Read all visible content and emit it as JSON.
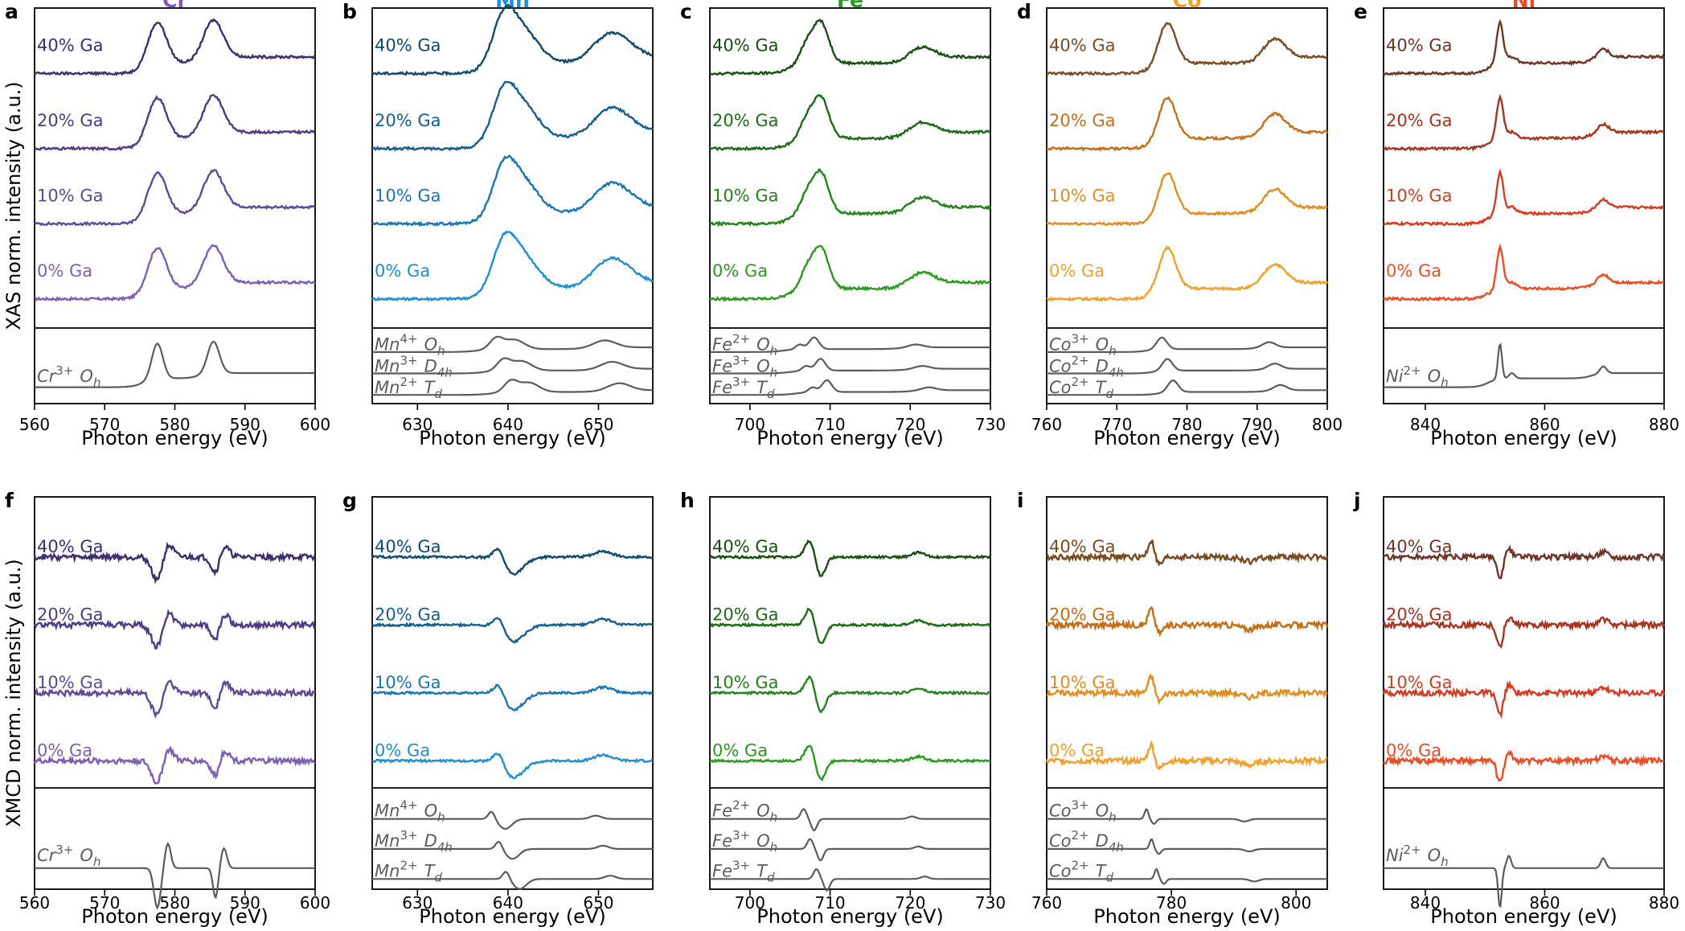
{
  "figure": {
    "row_ylabels": [
      "XAS norm. intensity (a.u.)",
      "XMCD norm. intensity (a.u.)"
    ],
    "xlabel": "Photon energy (eV)",
    "colors": {
      "Cr": [
        "#7b5fb4",
        "#5f4999",
        "#4e3b85",
        "#3e2e6e"
      ],
      "Mn": [
        "#1d8fd6",
        "#1876b3",
        "#145e90",
        "#104a6c"
      ],
      "Fe": [
        "#2a9a1e",
        "#23831a",
        "#1c6b15",
        "#174f12"
      ],
      "Co": [
        "#f2a02a",
        "#e38c20",
        "#c46e18",
        "#7a4a22"
      ],
      "Ni": [
        "#ee4a23",
        "#d63a20",
        "#a8331e",
        "#6e3428"
      ],
      "reference": "#5c5c5c",
      "Cr_title": "#7b5fb4",
      "Mn_title": "#1d8fd6",
      "Fe_title": "#2a9a1e",
      "Co_title": "#f2a02a",
      "Ni_title": "#ee4a23"
    }
  },
  "chart_data": [
    {
      "panel": "a",
      "title": "Cr",
      "type": "line",
      "kind": "XAS",
      "xlim": [
        560,
        600
      ],
      "xticks": [
        560,
        570,
        580,
        590,
        600
      ],
      "xlabel": "Photon energy (eV)",
      "ylabel": "XAS norm. intensity (a.u.)",
      "series": [
        {
          "name": "0% Ga"
        },
        {
          "name": "10% Ga"
        },
        {
          "name": "20% Ga"
        },
        {
          "name": "40% Ga"
        }
      ],
      "references": [
        {
          "base": "Cr",
          "charge": "3+",
          "site": "O",
          "sub": "h"
        }
      ],
      "peaks": [
        [
          577.5,
          1.0,
          1.3
        ],
        [
          585.5,
          0.9,
          1.4
        ]
      ]
    },
    {
      "panel": "b",
      "title": "Mn",
      "type": "line",
      "kind": "XAS",
      "xlim": [
        625,
        656
      ],
      "xticks": [
        630,
        640,
        650
      ],
      "xlabel": "Photon energy (eV)",
      "series": [
        {
          "name": "0% Ga"
        },
        {
          "name": "10% Ga"
        },
        {
          "name": "20% Ga"
        },
        {
          "name": "40% Ga"
        }
      ],
      "references": [
        {
          "base": "Mn",
          "charge": "4+",
          "site": "O",
          "sub": "h"
        },
        {
          "base": "Mn",
          "charge": "3+",
          "site": "D",
          "sub": "4h"
        },
        {
          "base": "Mn",
          "charge": "2+",
          "site": "T",
          "sub": "d"
        }
      ],
      "peaks": [
        [
          639.5,
          0.9,
          1.2
        ],
        [
          641.5,
          0.8,
          1.8
        ],
        [
          651.5,
          0.6,
          2.0
        ]
      ]
    },
    {
      "panel": "c",
      "title": "Fe",
      "type": "line",
      "kind": "XAS",
      "xlim": [
        695,
        730
      ],
      "xticks": [
        700,
        710,
        720,
        730
      ],
      "xlabel": "Photon energy (eV)",
      "series": [
        {
          "name": "0% Ga"
        },
        {
          "name": "10% Ga"
        },
        {
          "name": "20% Ga"
        },
        {
          "name": "40% Ga"
        }
      ],
      "references": [
        {
          "base": "Fe",
          "charge": "2+",
          "site": "O",
          "sub": "h"
        },
        {
          "base": "Fe",
          "charge": "3+",
          "site": "O",
          "sub": "h"
        },
        {
          "base": "Fe",
          "charge": "3+",
          "site": "T",
          "sub": "d"
        }
      ],
      "peaks": [
        [
          707.0,
          0.4,
          0.8
        ],
        [
          708.8,
          1.0,
          1.0
        ],
        [
          721.5,
          0.25,
          1.5
        ]
      ]
    },
    {
      "panel": "d",
      "title": "Co",
      "type": "line",
      "kind": "XAS",
      "xlim": [
        760,
        800
      ],
      "xticks": [
        760,
        770,
        780,
        790,
        800
      ],
      "xlabel": "Photon energy (eV)",
      "series": [
        {
          "name": "0% Ga"
        },
        {
          "name": "10% Ga"
        },
        {
          "name": "20% Ga"
        },
        {
          "name": "40% Ga"
        }
      ],
      "references": [
        {
          "base": "Co",
          "charge": "3+",
          "site": "O",
          "sub": "h"
        },
        {
          "base": "Co",
          "charge": "2+",
          "site": "D",
          "sub": "4h"
        },
        {
          "base": "Co",
          "charge": "2+",
          "site": "T",
          "sub": "d"
        }
      ],
      "peaks": [
        [
          777.2,
          1.0,
          1.2
        ],
        [
          792.5,
          0.45,
          1.5
        ]
      ]
    },
    {
      "panel": "e",
      "title": "Ni",
      "type": "line",
      "kind": "XAS",
      "xlim": [
        833,
        880
      ],
      "xticks": [
        840,
        860,
        880
      ],
      "xlabel": "Photon energy (eV)",
      "series": [
        {
          "name": "0% Ga"
        },
        {
          "name": "10% Ga"
        },
        {
          "name": "20% Ga"
        },
        {
          "name": "40% Ga"
        }
      ],
      "references": [
        {
          "base": "Ni",
          "charge": "2+",
          "site": "O",
          "sub": "h"
        }
      ],
      "peaks": [
        [
          852.5,
          1.0,
          0.55
        ],
        [
          854.5,
          0.15,
          0.8
        ],
        [
          869.8,
          0.2,
          0.9
        ]
      ]
    },
    {
      "panel": "f",
      "title": "",
      "type": "line",
      "kind": "XMCD",
      "xlim": [
        560,
        600
      ],
      "xticks": [
        560,
        570,
        580,
        590,
        600
      ],
      "xlabel": "Photon energy (eV)",
      "ylabel": "XMCD norm. intensity (a.u.)",
      "series": [
        {
          "name": "0% Ga"
        },
        {
          "name": "10% Ga"
        },
        {
          "name": "20% Ga"
        },
        {
          "name": "40% Ga"
        }
      ],
      "references": [
        {
          "base": "Cr",
          "charge": "3+",
          "site": "O",
          "sub": "h"
        }
      ],
      "peaks": [
        [
          577.5,
          -0.8,
          0.8
        ],
        [
          579.0,
          0.5,
          0.7
        ],
        [
          585.8,
          -0.6,
          0.6
        ],
        [
          587.0,
          0.4,
          0.7
        ]
      ]
    },
    {
      "panel": "g",
      "title": "",
      "type": "line",
      "kind": "XMCD",
      "xlim": [
        625,
        656
      ],
      "xticks": [
        630,
        640,
        650
      ],
      "xlabel": "Photon energy (eV)",
      "series": [
        {
          "name": "0% Ga"
        },
        {
          "name": "10% Ga"
        },
        {
          "name": "20% Ga"
        },
        {
          "name": "40% Ga"
        }
      ],
      "references": [
        {
          "base": "Mn",
          "charge": "4+",
          "site": "O",
          "sub": "h"
        },
        {
          "base": "Mn",
          "charge": "3+",
          "site": "D",
          "sub": "4h"
        },
        {
          "base": "Mn",
          "charge": "2+",
          "site": "T",
          "sub": "d"
        }
      ],
      "peaks": [
        [
          639.0,
          0.5,
          0.6
        ],
        [
          640.5,
          -0.6,
          1.2
        ],
        [
          650.5,
          0.2,
          1.0
        ]
      ]
    },
    {
      "panel": "h",
      "title": "",
      "type": "line",
      "kind": "XMCD",
      "xlim": [
        695,
        730
      ],
      "xticks": [
        700,
        710,
        720,
        730
      ],
      "xlabel": "Photon energy (eV)",
      "series": [
        {
          "name": "0% Ga"
        },
        {
          "name": "10% Ga"
        },
        {
          "name": "20% Ga"
        },
        {
          "name": "40% Ga"
        }
      ],
      "references": [
        {
          "base": "Fe",
          "charge": "2+",
          "site": "O",
          "sub": "h"
        },
        {
          "base": "Fe",
          "charge": "3+",
          "site": "O",
          "sub": "h"
        },
        {
          "base": "Fe",
          "charge": "3+",
          "site": "T",
          "sub": "d"
        }
      ],
      "peaks": [
        [
          707.5,
          0.6,
          0.6
        ],
        [
          708.8,
          -0.7,
          0.6
        ],
        [
          721.0,
          0.15,
          0.8
        ]
      ]
    },
    {
      "panel": "i",
      "title": "",
      "type": "line",
      "kind": "XMCD",
      "xlim": [
        760,
        805
      ],
      "xticks": [
        760,
        780,
        800
      ],
      "xlabel": "Photon energy (eV)",
      "series": [
        {
          "name": "0% Ga"
        },
        {
          "name": "10% Ga"
        },
        {
          "name": "20% Ga"
        },
        {
          "name": "40% Ga"
        }
      ],
      "references": [
        {
          "base": "Co",
          "charge": "3+",
          "site": "O",
          "sub": "h"
        },
        {
          "base": "Co",
          "charge": "2+",
          "site": "D",
          "sub": "4h"
        },
        {
          "base": "Co",
          "charge": "2+",
          "site": "T",
          "sub": "d"
        }
      ],
      "peaks": [
        [
          776.8,
          0.6,
          0.5
        ],
        [
          778.0,
          -0.3,
          0.6
        ],
        [
          792.5,
          -0.15,
          1.2
        ]
      ]
    },
    {
      "panel": "j",
      "title": "",
      "type": "line",
      "kind": "XMCD",
      "xlim": [
        833,
        880
      ],
      "xticks": [
        840,
        860,
        880
      ],
      "xlabel": "Photon energy (eV)",
      "series": [
        {
          "name": "0% Ga"
        },
        {
          "name": "10% Ga"
        },
        {
          "name": "20% Ga"
        },
        {
          "name": "40% Ga"
        }
      ],
      "references": [
        {
          "base": "Ni",
          "charge": "2+",
          "site": "O",
          "sub": "h"
        }
      ],
      "peaks": [
        [
          852.5,
          -0.8,
          0.5
        ],
        [
          854.0,
          0.25,
          0.6
        ],
        [
          869.8,
          0.2,
          0.7
        ]
      ]
    }
  ]
}
